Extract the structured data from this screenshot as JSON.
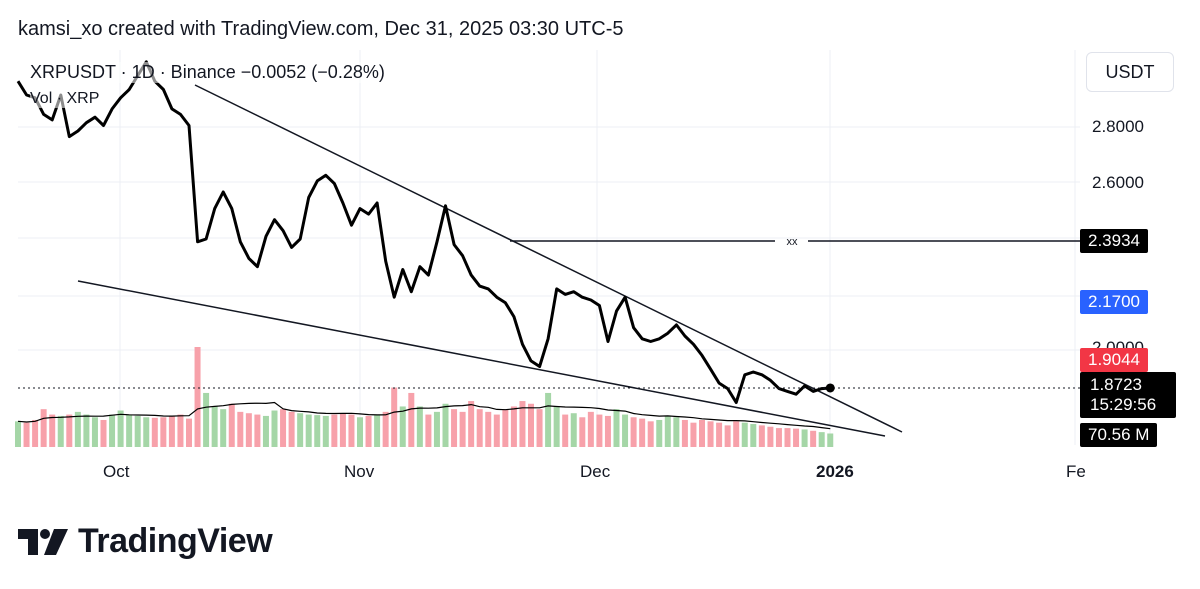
{
  "header": {
    "attribution": "kamsi_xo created with TradingView.com, Dec 31, 2025 03:30 UTC-5"
  },
  "legend": {
    "symbol_line": "XRPUSDT · 1D · Binance  −0.0052 (−0.28%)",
    "volume_label": "Vol · XRP"
  },
  "currency_button": "USDT",
  "chart_data": {
    "type": "line",
    "title": "",
    "xlabel": "",
    "ylabel": "USDT",
    "ylim": [
      1.68,
      3.0
    ],
    "grid": true,
    "x_tick_labels": [
      "Oct",
      "Nov",
      "Dec",
      "2026",
      "Fe"
    ],
    "y_tick_labels": [
      "2.8000",
      "2.6000",
      "2.0000"
    ],
    "x_start": "2025-09-20",
    "series": [
      {
        "values": [
          2.98,
          2.93,
          2.92,
          2.86,
          2.84,
          2.93,
          2.78,
          2.8,
          2.83,
          2.85,
          2.82,
          2.88,
          2.92,
          2.95,
          3.0,
          3.05,
          2.98,
          2.95,
          2.88,
          2.86,
          2.82,
          2.4,
          2.41,
          2.52,
          2.58,
          2.52,
          2.4,
          2.34,
          2.31,
          2.42,
          2.48,
          2.44,
          2.38,
          2.41,
          2.56,
          2.62,
          2.64,
          2.61,
          2.54,
          2.46,
          2.52,
          2.5,
          2.54,
          2.33,
          2.2,
          2.3,
          2.22,
          2.31,
          2.28,
          2.4,
          2.53,
          2.39,
          2.35,
          2.28,
          2.24,
          2.23,
          2.2,
          2.18,
          2.13,
          2.03,
          1.97,
          1.95,
          2.05,
          2.23,
          2.21,
          2.22,
          2.2,
          2.19,
          2.17,
          2.04,
          2.15,
          2.2,
          2.09,
          2.05,
          2.04,
          2.05,
          2.07,
          2.1,
          2.06,
          2.03,
          1.99,
          1.94,
          1.89,
          1.87,
          1.82,
          1.92,
          1.93,
          1.92,
          1.9,
          1.87,
          1.86,
          1.85,
          1.88,
          1.86,
          1.87,
          1.8723
        ]
      }
    ],
    "volume": [
      95,
      90,
      100,
      140,
      120,
      115,
      120,
      130,
      120,
      110,
      100,
      120,
      135,
      120,
      115,
      110,
      108,
      110,
      115,
      120,
      105,
      370,
      200,
      150,
      140,
      160,
      130,
      125,
      120,
      115,
      135,
      140,
      130,
      125,
      120,
      118,
      115,
      120,
      125,
      120,
      110,
      115,
      120,
      130,
      220,
      150,
      200,
      150,
      120,
      130,
      160,
      140,
      130,
      170,
      140,
      130,
      120,
      140,
      150,
      170,
      160,
      140,
      200,
      150,
      120,
      125,
      110,
      130,
      120,
      115,
      140,
      120,
      110,
      105,
      95,
      100,
      115,
      110,
      100,
      90,
      100,
      95,
      90,
      80,
      95,
      90,
      85,
      80,
      75,
      70,
      70,
      68,
      65,
      60,
      55,
      50
    ],
    "volume_label": "70.56 M",
    "annotations": {
      "horizontal_line": {
        "value": 2.3934,
        "label": "xx",
        "price_label": "2.3934"
      },
      "blue_marker": "2.1700",
      "red_marker": "1.9044",
      "last_price": "1.8723",
      "countdown": "15:29:56",
      "upper_trendline": "descending resistance",
      "lower_trendline": "descending support"
    }
  },
  "colors": {
    "price_line": "#000000",
    "volume_up": "#a5d6a7",
    "volume_down": "#f7a1aa",
    "grid": "#eceff4",
    "blue_badge": "#2962ff",
    "red_badge": "#f23645"
  },
  "logo": {
    "text": "TradingView",
    "icon": "tradingview-logo-icon"
  }
}
